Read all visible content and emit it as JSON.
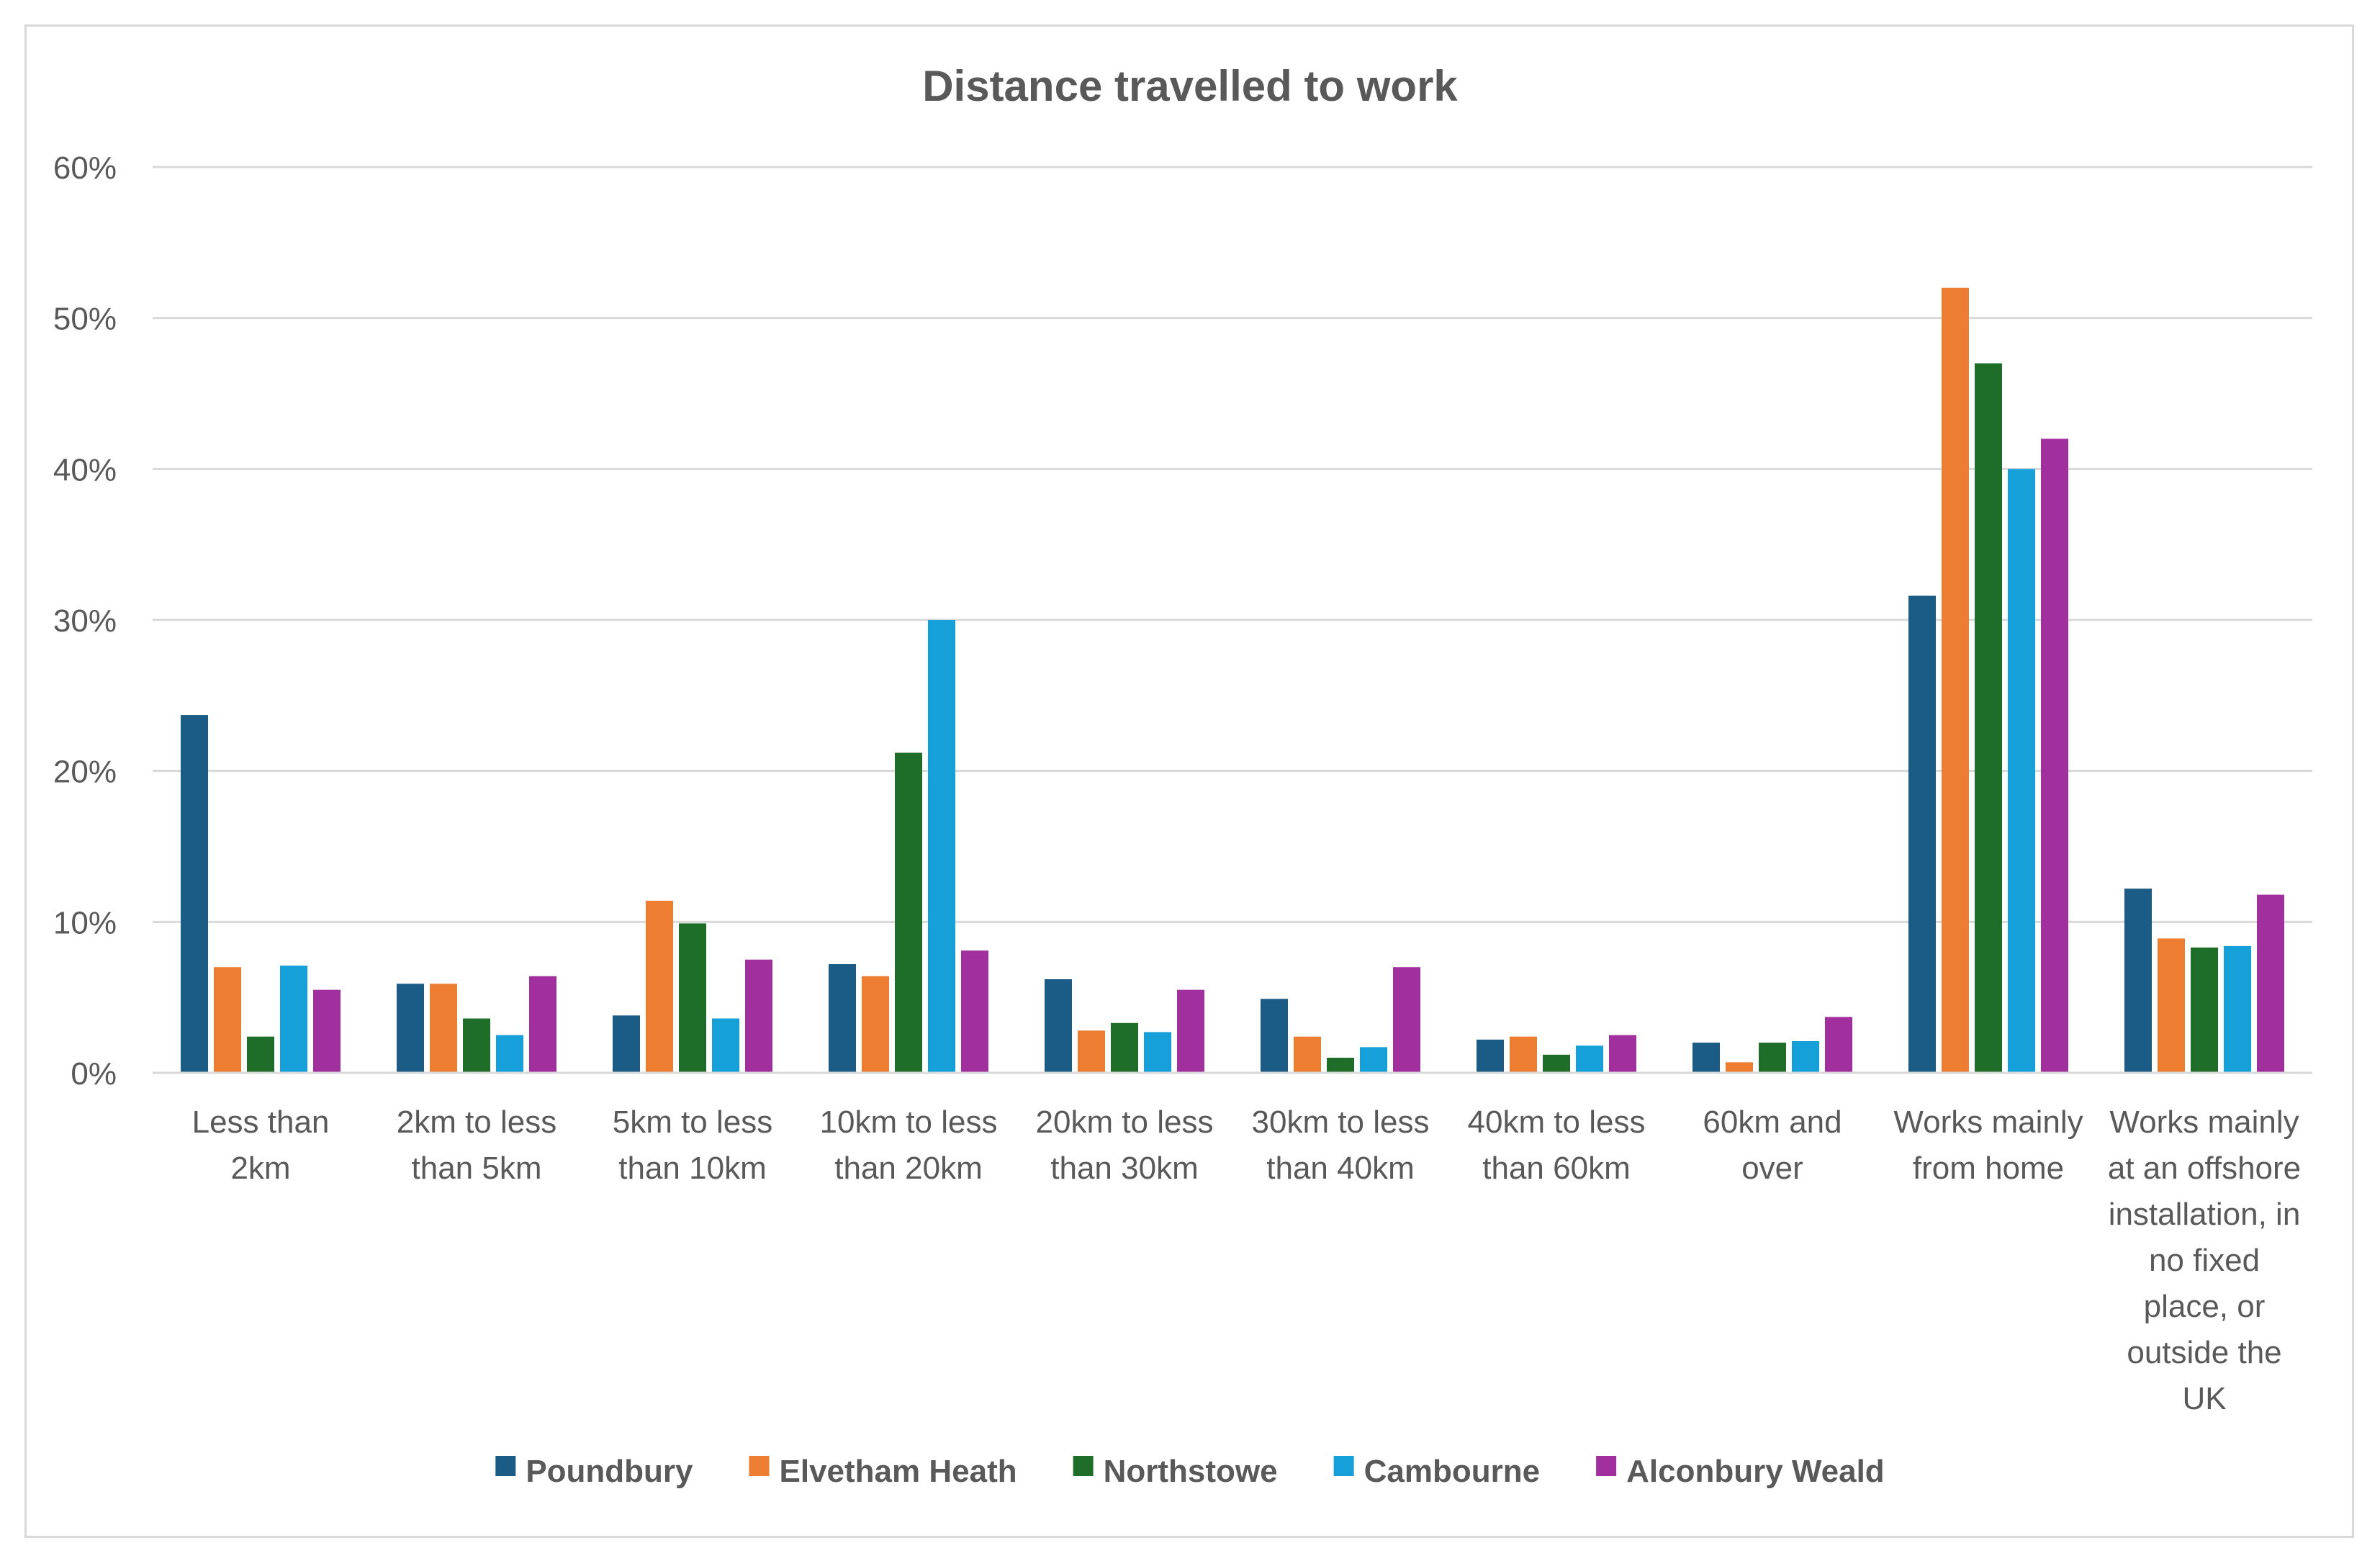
{
  "chart_data": {
    "type": "bar",
    "title": "Distance travelled to work",
    "xlabel": "",
    "ylabel": "",
    "ylim": [
      0,
      60
    ],
    "yticks": [
      "0%",
      "10%",
      "20%",
      "30%",
      "40%",
      "50%",
      "60%"
    ],
    "grid": true,
    "legend_position": "bottom",
    "categories": [
      "Less than 2km",
      "2km to less than 5km",
      "5km to less than 10km",
      "10km to less than 20km",
      "20km to less than 30km",
      "30km to less than 40km",
      "40km to less than 60km",
      "60km and over",
      "Works mainly from home",
      "Works mainly at an offshore installation, in no fixed place, or outside the UK"
    ],
    "category_lines": [
      [
        "Less than",
        "2km"
      ],
      [
        "2km to less",
        "than 5km"
      ],
      [
        "5km to less",
        "than 10km"
      ],
      [
        "10km to less",
        "than 20km"
      ],
      [
        "20km to less",
        "than 30km"
      ],
      [
        "30km to less",
        "than 40km"
      ],
      [
        "40km to less",
        "than 60km"
      ],
      [
        "60km and",
        "over"
      ],
      [
        "Works mainly",
        "from home"
      ],
      [
        "Works mainly",
        "at an offshore",
        "installation, in",
        "no fixed",
        "place, or",
        "outside the",
        "UK"
      ]
    ],
    "series": [
      {
        "name": "Poundbury",
        "color": "#1a5c85",
        "values": [
          23.7,
          5.9,
          3.8,
          7.2,
          6.2,
          4.9,
          2.2,
          2.0,
          31.6,
          12.2
        ]
      },
      {
        "name": "Elvetham Heath",
        "color": "#ed7d31",
        "values": [
          7.0,
          5.9,
          11.4,
          6.4,
          2.8,
          2.4,
          2.4,
          0.7,
          52.0,
          8.9
        ]
      },
      {
        "name": "Northstowe",
        "color": "#1e6e2a",
        "values": [
          2.4,
          3.6,
          9.9,
          21.2,
          3.3,
          1.0,
          1.2,
          2.0,
          47.0,
          8.3
        ]
      },
      {
        "name": "Cambourne",
        "color": "#16a0d9",
        "values": [
          7.1,
          2.5,
          3.6,
          30.0,
          2.7,
          1.7,
          1.8,
          2.1,
          40.0,
          8.4
        ]
      },
      {
        "name": "Alconbury Weald",
        "color": "#a12f9d",
        "values": [
          5.5,
          6.4,
          7.5,
          8.1,
          5.5,
          7.0,
          2.5,
          3.7,
          42.0,
          11.8
        ]
      }
    ]
  }
}
